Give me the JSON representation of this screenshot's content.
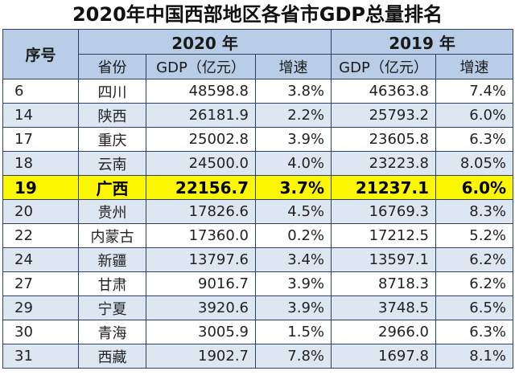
{
  "title": "2020年中国西部地区各省市GDP总量排名",
  "header": {
    "seq": "序号",
    "year_2020": "2020 年",
    "year_2019": "2019 年",
    "province": "省份",
    "gdp_2020": "GDP（亿元）",
    "growth_2020": "增速",
    "gdp_2019": "GDP（亿元）",
    "growth_2019": "增速"
  },
  "highlight_color": "#fbf700",
  "header_bg": "#b9cde6",
  "alt_row_bg": "#dde7f2",
  "rows": [
    {
      "rank": "6",
      "province": "四川",
      "gdp2020": "48598.8",
      "growth2020": "3.8%",
      "gdp2019": "46363.8",
      "growth2019": "7.4%"
    },
    {
      "rank": "14",
      "province": "陕西",
      "gdp2020": "26181.9",
      "growth2020": "2.2%",
      "gdp2019": "25793.2",
      "growth2019": "6.0%"
    },
    {
      "rank": "17",
      "province": "重庆",
      "gdp2020": "25002.8",
      "growth2020": "3.9%",
      "gdp2019": "23605.8",
      "growth2019": "6.3%"
    },
    {
      "rank": "18",
      "province": "云南",
      "gdp2020": "24500.0",
      "growth2020": "4.0%",
      "gdp2019": "23223.8",
      "growth2019": "8.05%"
    },
    {
      "rank": "19",
      "province": "广西",
      "gdp2020": "22156.7",
      "growth2020": "3.7%",
      "gdp2019": "21237.1",
      "growth2019": "6.0%"
    },
    {
      "rank": "20",
      "province": "贵州",
      "gdp2020": "17826.6",
      "growth2020": "4.5%",
      "gdp2019": "16769.3",
      "growth2019": "8.3%"
    },
    {
      "rank": "22",
      "province": "内蒙古",
      "gdp2020": "17360.0",
      "growth2020": "0.2%",
      "gdp2019": "17212.5",
      "growth2019": "5.2%"
    },
    {
      "rank": "24",
      "province": "新疆",
      "gdp2020": "13797.6",
      "growth2020": "3.4%",
      "gdp2019": "13597.1",
      "growth2019": "6.2%"
    },
    {
      "rank": "27",
      "province": "甘肃",
      "gdp2020": "9016.7",
      "growth2020": "3.9%",
      "gdp2019": "8718.3",
      "growth2019": "6.2%"
    },
    {
      "rank": "29",
      "province": "宁夏",
      "gdp2020": "3920.6",
      "growth2020": "3.9%",
      "gdp2019": "3748.5",
      "growth2019": "6.5%"
    },
    {
      "rank": "30",
      "province": "青海",
      "gdp2020": "3005.9",
      "growth2020": "1.5%",
      "gdp2019": "2966.0",
      "growth2019": "6.3%"
    },
    {
      "rank": "31",
      "province": "西藏",
      "gdp2020": "1902.7",
      "growth2020": "7.8%",
      "gdp2019": "1697.8",
      "growth2019": "8.1%"
    }
  ]
}
